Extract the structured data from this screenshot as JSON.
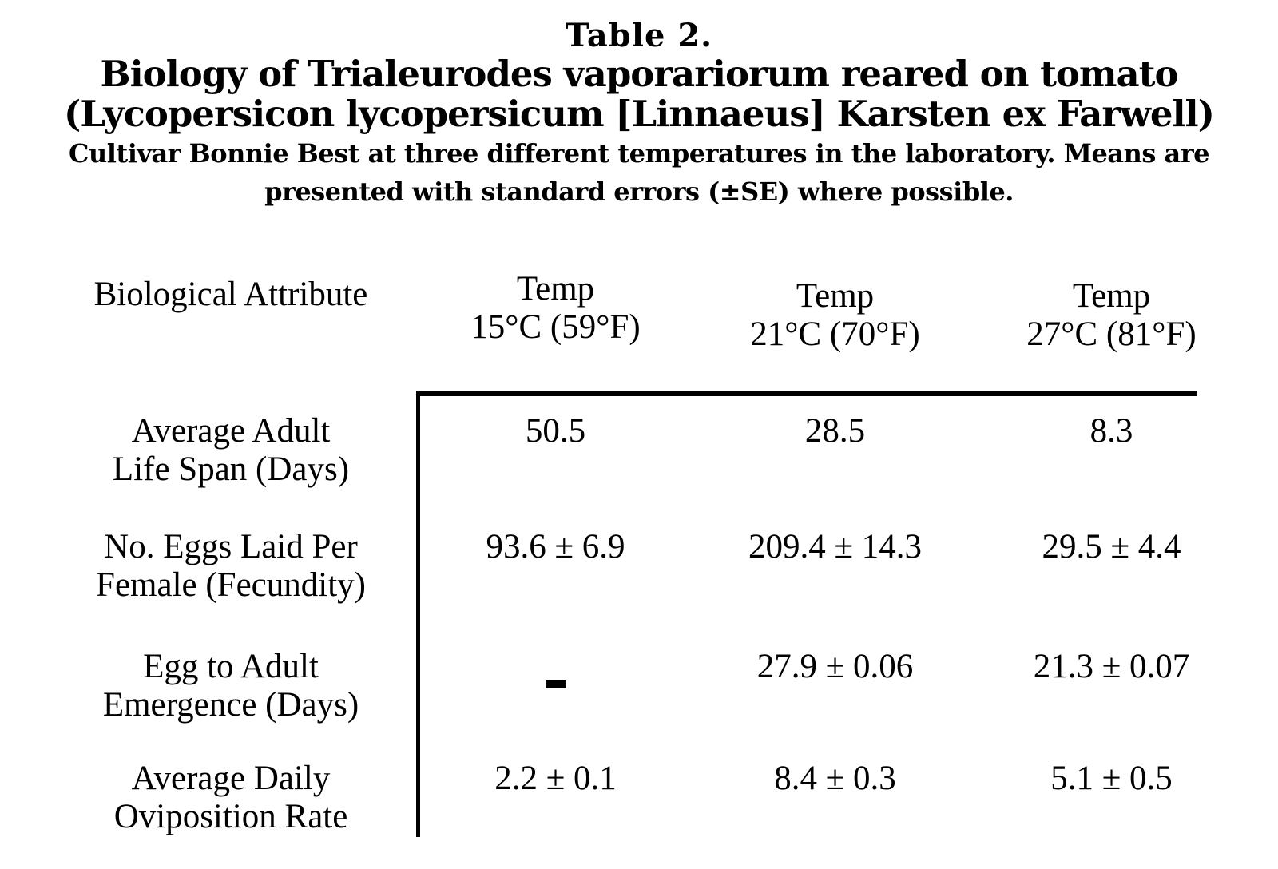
{
  "title_block": {
    "table_label": "Table 2.",
    "title_line1": "Biology of Trialeurodes vaporariorum reared on tomato",
    "title_line2": "(Lycopersicon lycopersicum [Linnaeus] Karsten ex Farwell)",
    "subtitle_line1": "Cultivar Bonnie Best at three different temperatures in the laboratory. Means are",
    "subtitle_line2": "presented with standard errors (±SE) where possible."
  },
  "table": {
    "header": {
      "attribute": "Biological Attribute",
      "col1_line1": "Temp",
      "col1_line2": "15°C (59°F)",
      "col2_line1": "Temp",
      "col2_line2": "21°C (70°F)",
      "col3_line1": "Temp",
      "col3_line2": "27°C (81°F)"
    },
    "rows": [
      {
        "label_line1": "Average Adult",
        "label_line2": "Life Span (Days)",
        "v1": "50.5",
        "v2": "28.5",
        "v3": "8.3"
      },
      {
        "label_line1": "No. Eggs Laid Per",
        "label_line2": "Female (Fecundity)",
        "v1": "93.6 ± 6.9",
        "v2": "209.4 ± 14.3",
        "v3": "29.5 ± 4.4"
      },
      {
        "label_line1": "Egg to Adult",
        "label_line2": "Emergence (Days)",
        "v1": "-",
        "v2": "27.9 ± 0.06",
        "v3": "21.3 ± 0.07"
      },
      {
        "label_line1": "Average Daily",
        "label_line2": "Oviposition Rate",
        "v1": "2.2 ± 0.1",
        "v2": "8.4 ± 0.3",
        "v3": "5.1 ± 0.5"
      }
    ]
  },
  "colors": {
    "background": "#ffffff",
    "text": "#000000",
    "rule": "#000000"
  }
}
